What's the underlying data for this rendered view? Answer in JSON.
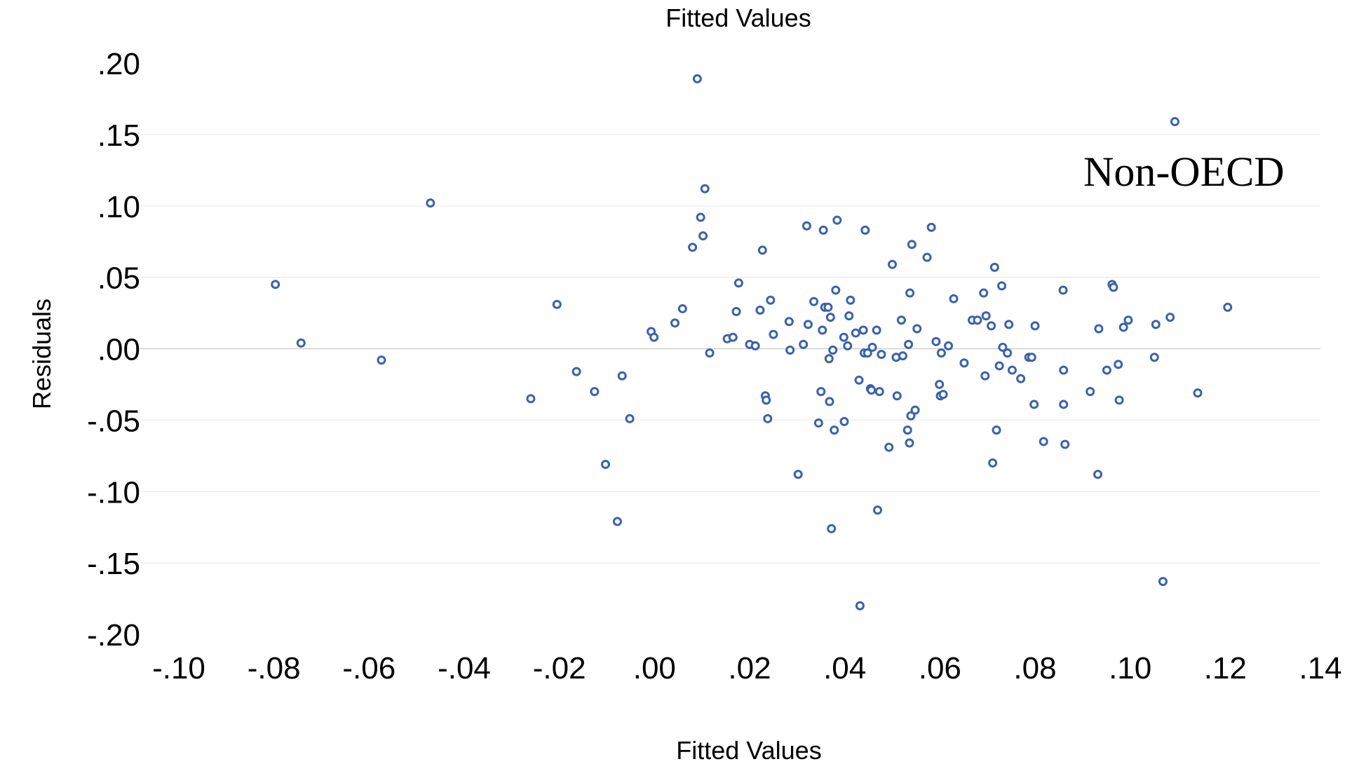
{
  "chart_data": {
    "type": "scatter",
    "title": "Fitted Values",
    "xlabel": "Fitted Values",
    "ylabel": "Residuals",
    "annotation": "Non-OECD",
    "xlim": [
      -0.1,
      0.14
    ],
    "ylim": [
      -0.2,
      0.2
    ],
    "x_ticks": [
      -0.1,
      -0.08,
      -0.06,
      -0.04,
      -0.02,
      0.0,
      0.02,
      0.04,
      0.06,
      0.08,
      0.1,
      0.12,
      0.14
    ],
    "x_tick_labels": [
      "-.10",
      "-.08",
      "-.06",
      "-.04",
      "-.02",
      ".00",
      ".02",
      ".04",
      ".06",
      ".08",
      ".10",
      ".12",
      ".14"
    ],
    "y_ticks": [
      0.2,
      0.15,
      0.1,
      0.05,
      0.0,
      -0.05,
      -0.1,
      -0.15,
      -0.2
    ],
    "y_tick_labels": [
      ".20",
      ".15",
      ".10",
      ".05",
      ".00",
      "-.05",
      "-.10",
      "-.15",
      "-.20"
    ],
    "grid": "horizontal",
    "marker_color": "#3a62ab",
    "points": [
      [
        -0.0797,
        0.045
      ],
      [
        -0.0743,
        0.004
      ],
      [
        -0.0574,
        -0.008
      ],
      [
        -0.0471,
        0.102
      ],
      [
        -0.026,
        -0.035
      ],
      [
        -0.0205,
        0.031
      ],
      [
        -0.0164,
        -0.016
      ],
      [
        -0.0126,
        -0.03
      ],
      [
        -0.0103,
        -0.081
      ],
      [
        -0.0078,
        -0.121
      ],
      [
        -0.0068,
        -0.019
      ],
      [
        -0.0052,
        -0.049
      ],
      [
        -0.0007,
        0.012
      ],
      [
        -0.0001,
        0.008
      ],
      [
        0.0043,
        0.018
      ],
      [
        0.0059,
        0.028
      ],
      [
        0.008,
        0.071
      ],
      [
        0.009,
        0.189
      ],
      [
        0.0097,
        0.092
      ],
      [
        0.0102,
        0.079
      ],
      [
        0.0106,
        0.112
      ],
      [
        0.0116,
        -0.003
      ],
      [
        0.0153,
        0.007
      ],
      [
        0.0165,
        0.008
      ],
      [
        0.0172,
        0.026
      ],
      [
        0.0177,
        0.046
      ],
      [
        0.02,
        0.003
      ],
      [
        0.0212,
        0.002
      ],
      [
        0.0222,
        0.027
      ],
      [
        0.0227,
        0.069
      ],
      [
        0.0233,
        -0.033
      ],
      [
        0.0235,
        -0.036
      ],
      [
        0.0238,
        -0.049
      ],
      [
        0.0244,
        0.034
      ],
      [
        0.025,
        0.01
      ],
      [
        0.0283,
        0.019
      ],
      [
        0.0285,
        -0.001
      ],
      [
        0.0302,
        -0.088
      ],
      [
        0.0313,
        0.003
      ],
      [
        0.032,
        0.086
      ],
      [
        0.0323,
        0.017
      ],
      [
        0.0335,
        0.033
      ],
      [
        0.0345,
        -0.052
      ],
      [
        0.035,
        -0.03
      ],
      [
        0.0353,
        0.013
      ],
      [
        0.0355,
        0.083
      ],
      [
        0.0358,
        0.029
      ],
      [
        0.0365,
        0.029
      ],
      [
        0.0367,
        -0.007
      ],
      [
        0.0368,
        -0.037
      ],
      [
        0.037,
        0.022
      ],
      [
        0.0372,
        -0.126
      ],
      [
        0.0375,
        -0.001
      ],
      [
        0.0378,
        -0.057
      ],
      [
        0.0381,
        0.041
      ],
      [
        0.0384,
        0.09
      ],
      [
        0.0398,
        0.008
      ],
      [
        0.0399,
        -0.051
      ],
      [
        0.0406,
        0.002
      ],
      [
        0.0409,
        0.023
      ],
      [
        0.0412,
        0.034
      ],
      [
        0.0423,
        0.011
      ],
      [
        0.043,
        -0.022
      ],
      [
        0.0432,
        -0.18
      ],
      [
        0.0439,
        0.013
      ],
      [
        0.0441,
        -0.003
      ],
      [
        0.0443,
        0.083
      ],
      [
        0.0448,
        -0.003
      ],
      [
        0.0454,
        -0.028
      ],
      [
        0.0456,
        -0.029
      ],
      [
        0.0458,
        0.001
      ],
      [
        0.0467,
        0.013
      ],
      [
        0.0469,
        -0.113
      ],
      [
        0.0473,
        -0.03
      ],
      [
        0.0477,
        -0.004
      ],
      [
        0.0493,
        -0.069
      ],
      [
        0.05,
        0.059
      ],
      [
        0.0508,
        -0.006
      ],
      [
        0.051,
        -0.033
      ],
      [
        0.0519,
        0.02
      ],
      [
        0.0522,
        -0.005
      ],
      [
        0.0532,
        -0.057
      ],
      [
        0.0534,
        0.003
      ],
      [
        0.0536,
        -0.066
      ],
      [
        0.0537,
        0.039
      ],
      [
        0.0539,
        -0.047
      ],
      [
        0.0541,
        0.073
      ],
      [
        0.0548,
        -0.043
      ],
      [
        0.0552,
        0.014
      ],
      [
        0.0573,
        0.064
      ],
      [
        0.0582,
        0.085
      ],
      [
        0.0592,
        0.005
      ],
      [
        0.0599,
        -0.025
      ],
      [
        0.0601,
        -0.033
      ],
      [
        0.0603,
        -0.003
      ],
      [
        0.0607,
        -0.032
      ],
      [
        0.0618,
        0.002
      ],
      [
        0.0629,
        0.035
      ],
      [
        0.0651,
        -0.01
      ],
      [
        0.0668,
        0.02
      ],
      [
        0.0679,
        0.02
      ],
      [
        0.0692,
        0.039
      ],
      [
        0.0695,
        -0.019
      ],
      [
        0.0697,
        0.023
      ],
      [
        0.0708,
        0.016
      ],
      [
        0.0711,
        -0.08
      ],
      [
        0.0715,
        0.057
      ],
      [
        0.0719,
        -0.057
      ],
      [
        0.0725,
        -0.012
      ],
      [
        0.073,
        0.044
      ],
      [
        0.0732,
        0.001
      ],
      [
        0.0742,
        -0.003
      ],
      [
        0.0745,
        0.017
      ],
      [
        0.0752,
        -0.015
      ],
      [
        0.077,
        -0.021
      ],
      [
        0.0787,
        -0.006
      ],
      [
        0.0793,
        -0.006
      ],
      [
        0.0798,
        -0.039
      ],
      [
        0.08,
        0.016
      ],
      [
        0.0818,
        -0.065
      ],
      [
        0.0859,
        0.041
      ],
      [
        0.086,
        -0.015
      ],
      [
        0.086,
        -0.039
      ],
      [
        0.0863,
        -0.067
      ],
      [
        0.0916,
        -0.03
      ],
      [
        0.0932,
        -0.088
      ],
      [
        0.0934,
        0.014
      ],
      [
        0.0951,
        -0.015
      ],
      [
        0.0962,
        0.045
      ],
      [
        0.0965,
        0.043
      ],
      [
        0.0975,
        -0.011
      ],
      [
        0.0977,
        -0.036
      ],
      [
        0.0986,
        0.015
      ],
      [
        0.0996,
        0.02
      ],
      [
        0.1051,
        -0.006
      ],
      [
        0.1054,
        0.017
      ],
      [
        0.1069,
        -0.163
      ],
      [
        0.1084,
        0.022
      ],
      [
        0.1094,
        0.159
      ],
      [
        0.1142,
        -0.031
      ],
      [
        0.1205,
        0.029
      ]
    ]
  }
}
